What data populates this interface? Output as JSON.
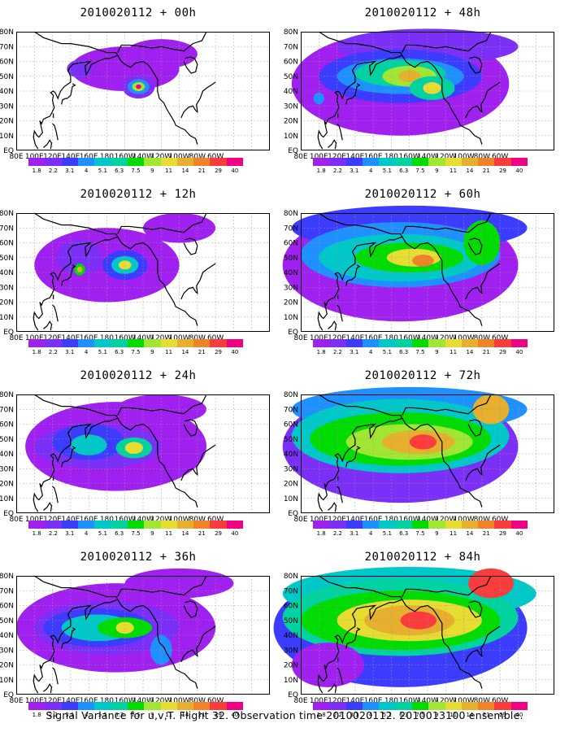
{
  "panels": [
    {
      "title": "2010020112 + 00h",
      "intensity": 0
    },
    {
      "title": "2010020112 + 48h",
      "intensity": 4
    },
    {
      "title": "2010020112 + 12h",
      "intensity": 1
    },
    {
      "title": "2010020112 + 60h",
      "intensity": 5
    },
    {
      "title": "2010020112 + 24h",
      "intensity": 2
    },
    {
      "title": "2010020112 + 72h",
      "intensity": 6
    },
    {
      "title": "2010020112 + 36h",
      "intensity": 3
    },
    {
      "title": "2010020112 + 84h",
      "intensity": 7
    }
  ],
  "axes": {
    "x_ticks": [
      "80E",
      "100E",
      "120E",
      "140E",
      "160E",
      "180",
      "160W",
      "140W",
      "120W",
      "100W",
      "80W",
      "60W"
    ],
    "y_ticks": [
      "EQ",
      "10N",
      "20N",
      "30N",
      "40N",
      "50N",
      "60N",
      "70N",
      "80N"
    ]
  },
  "legend": {
    "labels": [
      "1.8",
      "2.2",
      "3.1",
      "4",
      "5.1",
      "6.3",
      "7.5",
      "9",
      "11",
      "14",
      "21",
      "29",
      "40"
    ],
    "colors": [
      "#a020f0",
      "#7b2ff7",
      "#3c3cff",
      "#1e90ff",
      "#00c8c8",
      "#00d3a0",
      "#00dc00",
      "#a0e632",
      "#e6dc32",
      "#e6af2d",
      "#f08228",
      "#fa3c3c",
      "#f00082"
    ]
  },
  "caption": "Signal Variance for u,v,T. Flight 32. Observation time 2010020112. 2010013100 ensemble."
}
